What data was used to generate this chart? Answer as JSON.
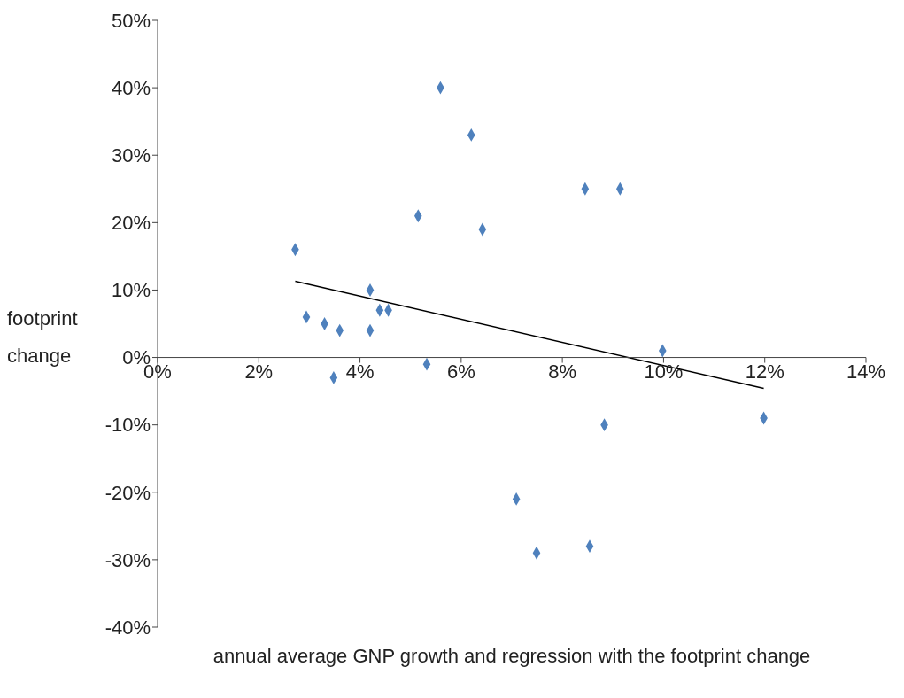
{
  "chart_data": {
    "type": "scatter",
    "xlabel": "annual average GNP growth and regression with the footprint change",
    "ylabel": "footprint change",
    "xlim": [
      0,
      14
    ],
    "xticks": [
      {
        "value": 0,
        "label": "0%"
      },
      {
        "value": 2,
        "label": "2%"
      },
      {
        "value": 4,
        "label": "4%"
      },
      {
        "value": 6,
        "label": "6%"
      },
      {
        "value": 8,
        "label": "8%"
      },
      {
        "value": 10,
        "label": "10%"
      },
      {
        "value": 12,
        "label": "12%"
      },
      {
        "value": 14,
        "label": "14%"
      }
    ],
    "ylim": [
      -40,
      50
    ],
    "yticks": [
      {
        "value": -40,
        "label": "-40%"
      },
      {
        "value": -30,
        "label": "-30%"
      },
      {
        "value": -20,
        "label": "-20%"
      },
      {
        "value": -10,
        "label": "-10%"
      },
      {
        "value": 0,
        "label": "0%"
      },
      {
        "value": 10,
        "label": "10%"
      },
      {
        "value": 20,
        "label": "20%"
      },
      {
        "value": 30,
        "label": "30%"
      },
      {
        "value": 40,
        "label": "40%"
      },
      {
        "value": 50,
        "label": "50%"
      }
    ],
    "series": [
      {
        "color": "#4f81bd",
        "marker": "diamond",
        "x": [
          2.72,
          2.94,
          3.3,
          3.6,
          3.48,
          4.2,
          4.2,
          4.39,
          4.56,
          5.15,
          5.32,
          5.59,
          6.2,
          6.42,
          7.09,
          7.49,
          8.45,
          8.54,
          8.83,
          9.14,
          9.98,
          11.98
        ],
        "values": [
          16,
          6,
          5,
          4,
          -3,
          10,
          4,
          7,
          7,
          21,
          -1,
          40,
          33,
          19,
          -21,
          -29,
          25,
          -28,
          -10,
          25,
          1,
          -9
        ]
      },
      {
        "type": "line",
        "color": "#000000",
        "marker": "none",
        "x": [
          2.72,
          11.98
        ],
        "values": [
          11.3,
          -4.6
        ]
      }
    ]
  }
}
